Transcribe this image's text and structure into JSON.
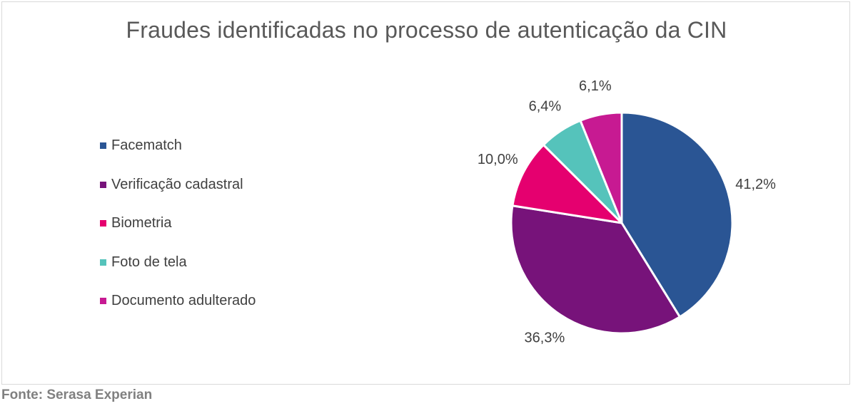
{
  "chart_data": {
    "type": "pie",
    "title": "Fraudes identificadas no processo de autenticação da CIN",
    "categories": [
      "Facematch",
      "Verificação cadastral",
      "Biometria",
      "Foto de tela",
      "Documento adulterado"
    ],
    "values": [
      41.2,
      36.3,
      10.0,
      6.4,
      6.1
    ],
    "value_labels": [
      "41,2%",
      "36,3%",
      "10,0%",
      "6,4%",
      "6,1%"
    ],
    "colors": [
      "#2a5594",
      "#77137a",
      "#e5006f",
      "#55c3bb",
      "#c71a92"
    ],
    "legend_position": "left",
    "start_angle_deg": 0,
    "direction": "clockwise"
  },
  "source": "Fonte: Serasa Experian"
}
